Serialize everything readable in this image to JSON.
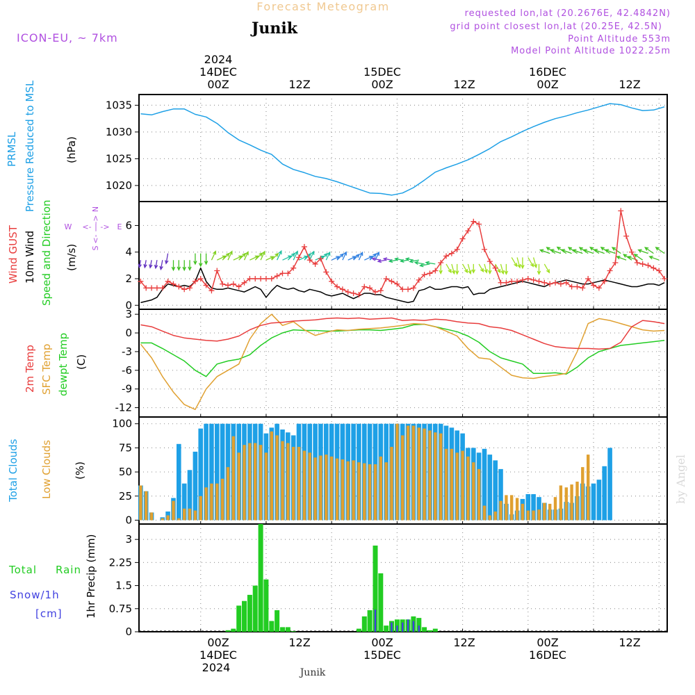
{
  "header": {
    "title": "Forecast Meteogram",
    "location": "Junik",
    "model": "ICON-EU, ~ 7km",
    "requested": "requested lon,lat (20.2676E, 42.4842N)",
    "grid_point": "grid point closest lon,lat (20.25E, 42.5N)",
    "point_altitude": "Point Altitude 553m",
    "model_altitude": "Model Point Altitude 1022.25m"
  },
  "footer": {
    "location": "Junik",
    "credit": "by Angel"
  },
  "colors": {
    "blue": "#1ea0e6",
    "red": "#e83c3c",
    "green": "#22cc22",
    "orange": "#e0a030",
    "purple": "#b050e0",
    "black": "#000000",
    "title": "#f0c890",
    "snow": "#4040e0"
  },
  "time_axis": {
    "top_year": "2024",
    "top_labels": [
      "14DEC",
      "00Z",
      "12Z",
      "15DEC",
      "00Z",
      "12Z",
      "16DEC",
      "00Z",
      "12Z"
    ],
    "bottom_labels": [
      "00Z",
      "14DEC",
      "2024",
      "12Z",
      "00Z",
      "15DEC",
      "12Z",
      "00Z",
      "16DEC",
      "12Z"
    ]
  },
  "chart_data": [
    {
      "type": "line",
      "title": "PRMSL Pressure Reduced to MSL",
      "ylabel_lines": [
        "PRMSL",
        "Pressure Reduced to MSL"
      ],
      "unit": "(hPa)",
      "ylim": [
        1017,
        1037
      ],
      "yticks": [
        "1020",
        "1025",
        "1030",
        "1035"
      ],
      "x_hours": [
        -11,
        -9,
        -7,
        -5,
        -3,
        -1,
        1,
        3,
        5,
        7,
        9,
        11,
        13,
        15,
        17,
        19,
        21,
        23,
        25,
        27,
        29,
        31,
        33,
        35,
        37,
        39,
        41,
        43,
        45,
        47,
        49,
        51,
        53,
        55,
        57,
        59,
        61,
        63,
        65,
        67,
        69,
        71,
        73,
        75,
        77,
        79,
        81,
        83,
        85
      ],
      "series": [
        {
          "name": "PRMSL",
          "values": [
            1033.4,
            1033.2,
            1033.8,
            1034.3,
            1034.3,
            1033.3,
            1032.8,
            1031.6,
            1029.9,
            1028.5,
            1027.6,
            1026.6,
            1025.8,
            1024.0,
            1023.0,
            1022.4,
            1021.7,
            1021.3,
            1020.7,
            1020.0,
            1019.3,
            1018.6,
            1018.5,
            1018.2,
            1018.6,
            1019.6,
            1021.0,
            1022.5,
            1023.3,
            1024.0,
            1024.8,
            1025.8,
            1026.9,
            1028.2,
            1029.1,
            1030.1,
            1031.0,
            1031.8,
            1032.5,
            1033.0,
            1033.6,
            1034.1,
            1034.7,
            1035.3,
            1035.1,
            1034.5,
            1034.0,
            1034.1,
            1034.7
          ]
        }
      ]
    },
    {
      "type": "line",
      "title": "Wind GUST, 10m Wind Speed and Direction",
      "ylabel_lines": [
        "Wind GUST",
        "10m Wind",
        "Speed and Direction"
      ],
      "unit": "(m/s)",
      "compass": [
        "N",
        "S",
        "W",
        "E"
      ],
      "ylim": [
        -0.3,
        7.8
      ],
      "yticks": [
        "0",
        "2",
        "4",
        "6"
      ],
      "x_hours": [
        -11,
        -10,
        -9,
        -8,
        -7,
        -6,
        -5,
        -4,
        -3,
        -2,
        -1,
        0,
        1,
        2,
        3,
        4,
        5,
        6,
        7,
        8,
        9,
        10,
        11,
        12,
        13,
        14,
        15,
        16,
        17,
        18,
        19,
        20,
        21,
        22,
        23,
        24,
        25,
        26,
        27,
        28,
        29,
        30,
        31,
        32,
        33,
        34,
        35,
        36,
        37,
        38,
        39,
        40,
        41,
        42,
        43,
        44,
        45,
        46,
        47,
        48,
        49,
        50,
        51,
        52,
        53,
        54,
        55,
        56,
        57,
        58,
        59,
        60,
        61,
        62,
        63,
        64,
        65,
        66,
        67,
        68,
        69,
        70,
        71,
        72,
        73,
        74,
        75,
        76,
        77,
        78,
        79,
        80,
        81,
        82,
        83,
        84,
        85
      ],
      "series": [
        {
          "name": "Wind GUST",
          "values": [
            1.8,
            1.3,
            1.3,
            1.3,
            1.3,
            1.8,
            1.6,
            1.4,
            1.2,
            1.3,
            1.8,
            2.0,
            1.5,
            1.1,
            2.6,
            1.6,
            1.5,
            1.6,
            1.4,
            1.7,
            2.0,
            2.0,
            2.0,
            2.0,
            2.0,
            2.2,
            2.4,
            2.4,
            2.8,
            3.6,
            4.4,
            3.4,
            3.1,
            3.5,
            2.5,
            1.8,
            1.4,
            1.2,
            1.0,
            0.9,
            0.8,
            1.4,
            1.3,
            1.0,
            1.1,
            2.0,
            1.8,
            1.6,
            1.2,
            1.2,
            1.3,
            1.9,
            2.3,
            2.4,
            2.6,
            3.2,
            3.7,
            3.9,
            4.2,
            5.0,
            5.6,
            6.3,
            6.1,
            4.2,
            3.3,
            2.8,
            1.7,
            1.7,
            1.8,
            1.8,
            1.9,
            2.0,
            1.9,
            1.8,
            1.7,
            1.6,
            1.7,
            1.6,
            1.7,
            1.4,
            1.4,
            1.3,
            2.0,
            1.5,
            1.3,
            1.8,
            2.6,
            3.2,
            7.1,
            5.2,
            4.0,
            3.2,
            3.1,
            3.0,
            2.8,
            2.6,
            2.0
          ]
        },
        {
          "name": "10m Wind",
          "values": [
            0.2,
            0.3,
            0.4,
            0.6,
            1.2,
            1.6,
            1.5,
            1.4,
            1.5,
            1.4,
            1.8,
            2.8,
            1.8,
            1.3,
            1.2,
            1.2,
            1.3,
            1.2,
            1.1,
            1.0,
            1.2,
            1.4,
            1.2,
            0.6,
            1.1,
            1.5,
            1.3,
            1.2,
            1.3,
            1.1,
            1.0,
            1.2,
            1.1,
            1.0,
            0.8,
            0.7,
            0.8,
            0.9,
            0.7,
            0.5,
            0.7,
            0.9,
            0.9,
            0.8,
            0.8,
            0.6,
            0.5,
            0.4,
            0.3,
            0.2,
            0.3,
            1.1,
            1.2,
            1.4,
            1.2,
            1.2,
            1.3,
            1.4,
            1.4,
            1.3,
            1.4,
            0.8,
            0.9,
            0.9,
            1.2,
            1.3,
            1.4,
            1.5,
            1.6,
            1.7,
            1.8,
            1.7,
            1.6,
            1.5,
            1.4,
            1.6,
            1.7,
            1.8,
            1.9,
            1.8,
            1.7,
            1.6,
            1.6,
            1.7,
            1.8,
            1.9,
            1.8,
            1.7,
            1.6,
            1.5,
            1.4,
            1.4,
            1.5,
            1.6,
            1.6,
            1.5,
            1.7
          ]
        }
      ]
    },
    {
      "type": "line",
      "title": "2m Temp, SFC Temp, dewpt Temp",
      "ylabel_lines": [
        "2m Temp",
        "SFC Temp",
        "dewpt Temp"
      ],
      "unit": "(C)",
      "ylim": [
        -13.5,
        3.8
      ],
      "yticks": [
        "3",
        "0",
        "-3",
        "-6",
        "-9",
        "-12"
      ],
      "x_hours": [
        -11,
        -9,
        -7,
        -5,
        -3,
        -1,
        1,
        3,
        5,
        7,
        9,
        11,
        13,
        15,
        17,
        19,
        21,
        23,
        25,
        27,
        29,
        31,
        33,
        35,
        37,
        39,
        41,
        43,
        45,
        47,
        49,
        51,
        53,
        55,
        57,
        59,
        61,
        63,
        65,
        67,
        69,
        71,
        73,
        75,
        77,
        79,
        81,
        83,
        85
      ],
      "series": [
        {
          "name": "2m Temp",
          "values": [
            1.3,
            1.0,
            0.3,
            -0.4,
            -0.8,
            -1.0,
            -1.2,
            -1.3,
            -1.0,
            -0.5,
            0.5,
            1.2,
            1.6,
            1.7,
            1.9,
            2.0,
            2.1,
            2.3,
            2.4,
            2.3,
            2.4,
            2.2,
            2.3,
            2.4,
            2.0,
            2.1,
            2.0,
            2.2,
            2.1,
            1.8,
            1.6,
            1.5,
            1.0,
            0.8,
            0.4,
            -0.3,
            -1.0,
            -1.7,
            -2.2,
            -2.4,
            -2.5,
            -2.5,
            -2.6,
            -2.5,
            -1.5,
            1.0,
            2.0,
            1.8,
            1.5
          ]
        },
        {
          "name": "SFC Temp",
          "values": [
            -1.8,
            -4.0,
            -7.0,
            -9.5,
            -11.5,
            -12.3,
            -9.0,
            -7.0,
            -6.0,
            -5.0,
            -1.0,
            1.5,
            3.0,
            1.2,
            1.8,
            0.5,
            -0.4,
            0.1,
            0.5,
            0.4,
            0.6,
            0.7,
            0.8,
            1.0,
            1.2,
            1.5,
            1.4,
            1.0,
            0.3,
            -0.5,
            -2.5,
            -4.0,
            -4.2,
            -5.5,
            -6.8,
            -7.2,
            -7.3,
            -7.0,
            -6.8,
            -6.5,
            -3.0,
            1.5,
            2.3,
            2.0,
            1.5,
            1.0,
            0.5,
            0.3,
            0.4
          ]
        },
        {
          "name": "dewpt Temp",
          "values": [
            -1.6,
            -1.6,
            -2.5,
            -3.5,
            -4.5,
            -6.0,
            -7.0,
            -5.0,
            -4.5,
            -4.2,
            -3.5,
            -2.0,
            -0.8,
            0.0,
            0.5,
            0.4,
            0.4,
            0.3,
            0.3,
            0.4,
            0.5,
            0.5,
            0.4,
            0.6,
            0.8,
            1.3,
            1.4,
            1.0,
            0.6,
            0.2,
            -0.5,
            -1.5,
            -3.0,
            -4.0,
            -4.5,
            -5.0,
            -6.5,
            -6.5,
            -6.4,
            -6.6,
            -5.5,
            -4.0,
            -3.0,
            -2.5,
            -2.0,
            -1.8,
            -1.6,
            -1.4,
            -1.2
          ]
        }
      ]
    },
    {
      "type": "bar",
      "title": "Total Clouds, Low Clouds",
      "ylabel_lines": [
        "Total Clouds",
        "Low Clouds"
      ],
      "unit": "(%)",
      "ylim": [
        -4,
        107
      ],
      "yticks": [
        "100",
        "75",
        "50",
        "25",
        "0"
      ],
      "x_hours": [
        -11,
        -10,
        -9,
        -8,
        -7,
        -6,
        -5,
        -4,
        -3,
        -2,
        -1,
        0,
        1,
        2,
        3,
        4,
        5,
        6,
        7,
        8,
        9,
        10,
        11,
        12,
        13,
        14,
        15,
        16,
        17,
        18,
        19,
        20,
        21,
        22,
        23,
        24,
        25,
        26,
        27,
        28,
        29,
        30,
        31,
        32,
        33,
        34,
        35,
        36,
        37,
        38,
        39,
        40,
        41,
        42,
        43,
        44,
        45,
        46,
        47,
        48,
        49,
        50,
        51,
        52,
        53,
        54,
        55,
        56,
        57,
        58,
        59,
        60,
        61,
        62,
        63,
        64,
        65,
        66,
        67,
        68,
        69,
        70,
        71,
        72,
        73,
        74,
        75,
        76,
        77,
        78,
        79,
        80,
        81,
        82,
        83,
        84,
        85
      ],
      "series": [
        {
          "name": "Total Clouds",
          "values": [
            36,
            30,
            8,
            0,
            3,
            9,
            23,
            79,
            38,
            52,
            71,
            95,
            100,
            100,
            100,
            100,
            100,
            100,
            100,
            100,
            100,
            100,
            100,
            90,
            96,
            100,
            94,
            91,
            88,
            100,
            100,
            100,
            100,
            100,
            100,
            100,
            100,
            100,
            100,
            100,
            100,
            100,
            100,
            100,
            100,
            100,
            100,
            100,
            100,
            100,
            100,
            100,
            100,
            100,
            100,
            100,
            98,
            96,
            93,
            90,
            75,
            75,
            70,
            74,
            68,
            62,
            53,
            17,
            6,
            10,
            22,
            27,
            27,
            24,
            18,
            11,
            11,
            12,
            19,
            18,
            25,
            38,
            35,
            38,
            42,
            56,
            75
          ]
        },
        {
          "name": "Low Clouds",
          "values": [
            36,
            30,
            8,
            0,
            2,
            5,
            20,
            2,
            12,
            12,
            10,
            25,
            34,
            38,
            38,
            43,
            55,
            87,
            70,
            78,
            80,
            80,
            78,
            70,
            92,
            88,
            82,
            80,
            76,
            76,
            72,
            70,
            65,
            67,
            68,
            66,
            64,
            63,
            61,
            62,
            60,
            59,
            58,
            58,
            66,
            60,
            76,
            100,
            88,
            98,
            98,
            96,
            95,
            93,
            91,
            90,
            74,
            74,
            70,
            72,
            66,
            60,
            53,
            15,
            5,
            9,
            20,
            26,
            26,
            23,
            17,
            10,
            10,
            11,
            18,
            17,
            24,
            36,
            34,
            37,
            40,
            55,
            68
          ]
        }
      ]
    },
    {
      "type": "bar",
      "title": "Total Rain, Snow/1h",
      "ylabel_lines": [
        "1hr Precip (mm)"
      ],
      "legend": [
        "Total",
        "Rain",
        "Snow/1h",
        "[cm]"
      ],
      "ylim": [
        0,
        3.5
      ],
      "yticks": [
        "3",
        "2.25",
        "1.5",
        "0.75",
        "0"
      ],
      "x_hours": [
        5,
        6,
        7,
        8,
        9,
        10,
        11,
        12,
        13,
        14,
        15,
        16,
        17,
        29,
        30,
        31,
        32,
        33,
        34,
        35,
        36,
        37,
        38,
        39,
        40,
        41,
        42,
        43
      ],
      "series": [
        {
          "name": "Total Rain",
          "values": [
            0.05,
            0.1,
            0.85,
            1.0,
            1.2,
            1.5,
            3.5,
            1.7,
            0.35,
            0.7,
            0.15,
            0.15,
            0.02,
            0.1,
            0.5,
            0.7,
            2.8,
            1.9,
            0.2,
            0.35,
            0.4,
            0.4,
            0.4,
            0.5,
            0.45,
            0.15,
            0.05,
            0.1
          ]
        },
        {
          "name": "Snow/1h",
          "values": [
            0,
            0,
            0,
            0,
            0,
            0,
            0,
            0,
            0,
            0,
            0,
            0,
            0,
            0,
            0,
            0,
            0.72,
            0,
            0,
            0.3,
            0.2,
            0.3,
            0.4,
            0.35,
            0.2,
            0,
            0,
            0
          ]
        }
      ]
    }
  ]
}
